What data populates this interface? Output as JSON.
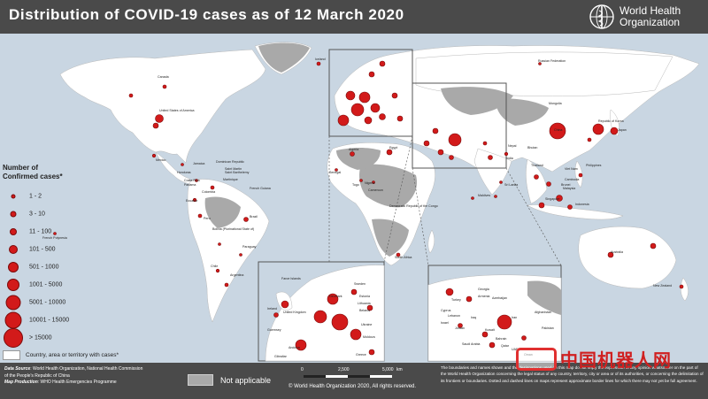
{
  "header": {
    "title": "Distribution of COVID-19  cases as of 12 March 2020",
    "who_line1": "World Health",
    "who_line2": "Organization"
  },
  "legend": {
    "title_line1": "Number of",
    "title_line2": "Confirmed cases*",
    "items": [
      {
        "label": "1 - 2"
      },
      {
        "label": "3 - 10"
      },
      {
        "label": "11 - 100"
      },
      {
        "label": "101 - 500"
      },
      {
        "label": "501 - 1000"
      },
      {
        "label": "1001 - 5000"
      },
      {
        "label": "5001 - 10000"
      },
      {
        "label": "10001 - 15000"
      },
      {
        "label": "> 15000"
      }
    ],
    "country_label": "Country, area or territory with cases*"
  },
  "footer": {
    "source_label": "Data Source",
    "source_text": ": World Health Organization, National Health Commission of the People's Republic of China",
    "production_label": "Map Production",
    "production_text": ": WHO Health Emergencies Programme",
    "not_applicable": "Not applicable",
    "scale_0": "0",
    "scale_mid": "2,500",
    "scale_end": "5,000",
    "scale_unit": "km",
    "copyright": "© World Health Organization  2020,  All rights reserved.",
    "disclaimer": "The boundaries and names shown and the designations used on this map do not imply the expression of any opinion whatsoever on the part of the World Health Organization concerning the legal status of any country, territory, city or area or of its authorities, or concerning the delimitation of its frontiers or boundaries. Dotted and dashed lines on maps represent approximate border lines for which there may not yet be full agreement."
  },
  "watermark": {
    "text": "中国机器人网"
  },
  "colors": {
    "ocean": "#c9d6e2",
    "country_with_cases": "#ffffff",
    "no_cases": "#e0e0e0",
    "not_applicable": "#a9a9a9",
    "bubble": "#d21a1a",
    "header": "#4a4a4a"
  },
  "map_labels": {
    "canada": "Canada",
    "us": "United States of America",
    "mexico": "Mexico",
    "dominican": "Dominican Republic",
    "jamaica": "Jamaica",
    "saint_martin": "Saint Martin",
    "barthelemy": "Saint Barthelemy",
    "martinique": "Martinique",
    "honduras": "Honduras",
    "costa_rica": "Costa Rica",
    "panama": "Panama",
    "french_guiana": "French Guiana",
    "colombia": "Colombia",
    "ecuador": "Ecuador",
    "peru": "Peru",
    "brazil": "Brazil",
    "bolivia": "Bolivia (Plurinational State of)",
    "paraguay": "Paraguay",
    "chile": "Chile",
    "argentina": "Argentina",
    "french_polynesia": "French Polynesia",
    "iceland": "Iceland",
    "russia": "Russian Federation",
    "mongolia": "Mongolia",
    "japan": "Japan",
    "rok": "Republic of Korea",
    "china": "China",
    "nepal": "Nepal",
    "bhutan": "Bhutan",
    "india": "India",
    "sri_lanka": "Sri Lanka",
    "maldives": "Maldives",
    "thailand": "Thailand",
    "viet_nam": "Viet Nam",
    "philippines": "Philippines",
    "cambodia": "Cambodia",
    "brunei": "Brunei",
    "malaysia": "Malaysia",
    "singapore": "Singapore",
    "indonesia": "Indonesia",
    "australia": "Australia",
    "new_zealand": "New Zealand",
    "algeria": "Algeria",
    "egypt": "Egypt",
    "senegal": "Senegal",
    "nigeria": "Nigeria",
    "drc": "Democratic Republic of the Congo",
    "south_africa": "South Africa",
    "togo": "Togo",
    "cameroon": "Cameroon",
    "faroe": "Faroe Islands",
    "ireland": "Ireland",
    "uk": "United Kingdom",
    "guernsey": "Guernsey",
    "sweden": "Sweden",
    "denmark": "Denmark",
    "estonia": "Estonia",
    "lithuania": "Lithuania",
    "belarus": "Belarus",
    "ukraine": "Ukraine",
    "greece": "Greece",
    "gibraltar": "Gibraltar",
    "andorra": "Andorra",
    "moldova": "Moldova",
    "georgia": "Georgia",
    "armenia": "Armenia",
    "azerbaijan": "Azerbaijan",
    "turkey": "Turkey",
    "iran": "Iran",
    "iraq": "Iraq",
    "lebanon": "Lebanon",
    "cyprus": "Cyprus",
    "israel": "Israel",
    "kuwait": "Kuwait",
    "qatar": "Qatar",
    "saudi": "Saudi Arabia",
    "uae": "UAE",
    "oman": "Oman",
    "pakistan": "Pakistan",
    "afghanistan": "Afghanistan",
    "jordan": "Jordan",
    "bahrain": "Bahrain"
  }
}
